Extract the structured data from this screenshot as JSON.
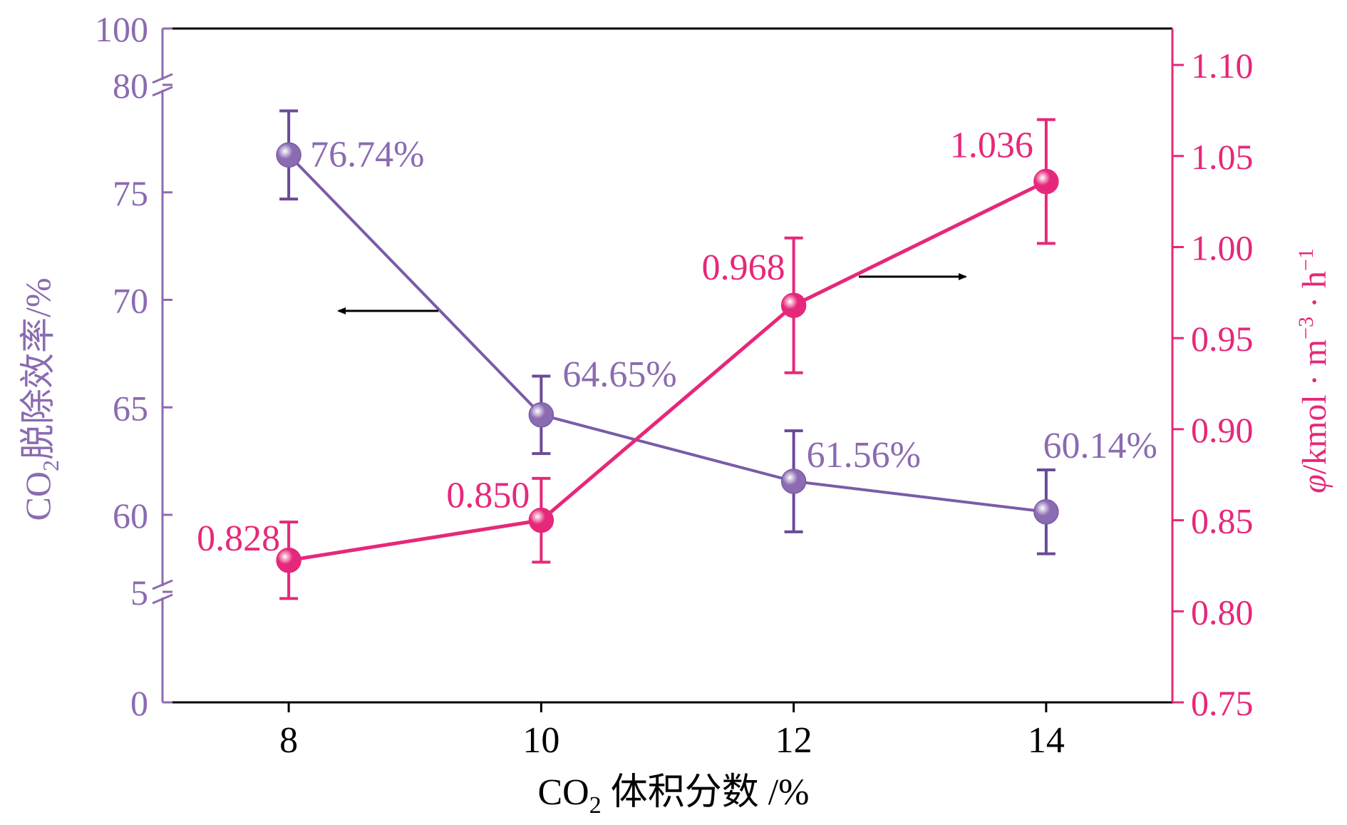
{
  "chart_data": {
    "type": "line",
    "title": "",
    "x": [
      8,
      10,
      12,
      14
    ],
    "xlabel": {
      "prefix": "CO",
      "sub": "2",
      "suffix": " 体积分数 /%"
    },
    "xlim": [
      7,
      15
    ],
    "y_left": {
      "label": {
        "prefix": "CO",
        "sub": "2",
        "suffix": "脱除效率/%"
      },
      "ticks": [
        "0",
        "5",
        "60",
        "65",
        "70",
        "75",
        "80",
        "100"
      ],
      "break_ranges": [
        [
          5,
          58
        ],
        [
          80,
          100
        ]
      ],
      "color": "#8B6BB1"
    },
    "y_right": {
      "label": {
        "phi": "φ",
        "text": "/kmol · m",
        "sup1": "−3",
        "mid": " · h",
        "sup2": "−1"
      },
      "ticks": [
        "0.75",
        "0.80",
        "0.85",
        "0.90",
        "0.95",
        "1.00",
        "1.05",
        "1.10"
      ],
      "ylim": [
        0.75,
        1.12
      ],
      "color": "#E6287A"
    },
    "series": [
      {
        "name": "CO2脱除效率",
        "axis": "left",
        "color": "#7A5BA8",
        "marker_color": "#8B6BB1",
        "values": [
          76.74,
          64.65,
          61.56,
          60.14
        ],
        "errors": [
          2.05,
          1.8,
          2.35,
          1.95
        ],
        "labels": [
          "76.74%",
          "64.65%",
          "61.56%",
          "60.14%"
        ]
      },
      {
        "name": "φ",
        "axis": "right",
        "color": "#E6287A",
        "marker_color": "#E6287A",
        "values": [
          0.828,
          0.85,
          0.968,
          1.036
        ],
        "errors": [
          0.021,
          0.023,
          0.037,
          0.034
        ],
        "labels": [
          "0.828",
          "0.850",
          "0.968",
          "1.036"
        ]
      }
    ],
    "annotations": [
      {
        "type": "arrow",
        "direction": "left",
        "refers_to": "left axis"
      },
      {
        "type": "arrow",
        "direction": "right",
        "refers_to": "right axis"
      }
    ]
  }
}
